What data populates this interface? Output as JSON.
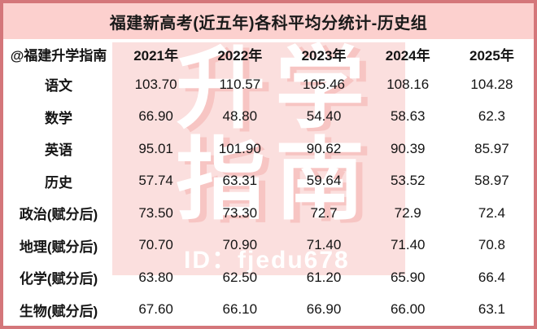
{
  "title": "福建新高考(近五年)各科平均分统计-历史组",
  "table": {
    "corner_label": "@福建升学指南",
    "year_headers": [
      "2021年",
      "2022年",
      "2023年",
      "2024年",
      "2025年"
    ],
    "rows": [
      {
        "subject": "语文",
        "values": [
          "103.70",
          "110.57",
          "105.46",
          "108.16",
          "104.28"
        ]
      },
      {
        "subject": "数学",
        "values": [
          "66.90",
          "48.80",
          "54.40",
          "58.63",
          "62.3"
        ]
      },
      {
        "subject": "英语",
        "values": [
          "95.01",
          "101.90",
          "90.62",
          "90.39",
          "85.97"
        ]
      },
      {
        "subject": "历史",
        "values": [
          "57.74",
          "63.31",
          "59.64",
          "53.52",
          "58.97"
        ]
      },
      {
        "subject": "政治(赋分后)",
        "values": [
          "73.50",
          "73.30",
          "72.7",
          "72.9",
          "72.4"
        ]
      },
      {
        "subject": "地理(赋分后)",
        "values": [
          "70.70",
          "70.90",
          "71.40",
          "71.40",
          "70.8"
        ]
      },
      {
        "subject": "化学(赋分后)",
        "values": [
          "63.80",
          "62.50",
          "61.20",
          "65.90",
          "66.4"
        ]
      },
      {
        "subject": "生物(赋分后)",
        "values": [
          "67.60",
          "66.10",
          "66.90",
          "66.00",
          "63.1"
        ]
      }
    ]
  },
  "watermark": {
    "line1": "升学",
    "line2": "指南",
    "id_text": "ID：fjedu678"
  },
  "colors": {
    "title_bg": "#fcd0ce",
    "border": "#d4767a",
    "watermark_bg": "#fbdfde",
    "watermark_text": "#ffffff",
    "text": "#141414"
  },
  "chart_data": {
    "type": "table",
    "title": "福建新高考(近五年)各科平均分统计-历史组",
    "categories": [
      "2021年",
      "2022年",
      "2023年",
      "2024年",
      "2025年"
    ],
    "series": [
      {
        "name": "语文",
        "values": [
          103.7,
          110.57,
          105.46,
          108.16,
          104.28
        ]
      },
      {
        "name": "数学",
        "values": [
          66.9,
          48.8,
          54.4,
          58.63,
          62.3
        ]
      },
      {
        "name": "英语",
        "values": [
          95.01,
          101.9,
          90.62,
          90.39,
          85.97
        ]
      },
      {
        "name": "历史",
        "values": [
          57.74,
          63.31,
          59.64,
          53.52,
          58.97
        ]
      },
      {
        "name": "政治(赋分后)",
        "values": [
          73.5,
          73.3,
          72.7,
          72.9,
          72.4
        ]
      },
      {
        "name": "地理(赋分后)",
        "values": [
          70.7,
          70.9,
          71.4,
          71.4,
          70.8
        ]
      },
      {
        "name": "化学(赋分后)",
        "values": [
          63.8,
          62.5,
          61.2,
          65.9,
          66.4
        ]
      },
      {
        "name": "生物(赋分后)",
        "values": [
          67.6,
          66.1,
          66.9,
          66.0,
          63.1
        ]
      }
    ]
  }
}
